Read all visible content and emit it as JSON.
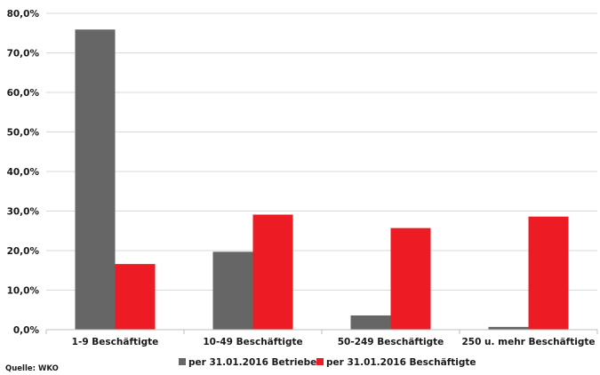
{
  "chart_data": {
    "type": "bar",
    "categories": [
      "1-9 Beschäftigte",
      "10-49 Beschäftigte",
      "50-249 Beschäftigte",
      "250 u. mehr Beschäftigte"
    ],
    "series": [
      {
        "name": "per 31.01.2016 Betriebe",
        "color": "#666666",
        "values": [
          75.9,
          19.7,
          3.6,
          0.7
        ]
      },
      {
        "name": "per 31.01.2016 Beschäftigte",
        "color": "#ed1c24",
        "values": [
          16.6,
          29.1,
          25.7,
          28.6
        ]
      }
    ],
    "ylim": [
      0,
      80
    ],
    "yticks": [
      0,
      10,
      20,
      30,
      40,
      50,
      60,
      70,
      80
    ],
    "ytick_labels": [
      "0,0%",
      "10,0%",
      "20,0%",
      "30,0%",
      "40,0%",
      "50,0%",
      "60,0%",
      "70,0%",
      "80,0%"
    ],
    "grid": true,
    "legend_position": "bottom",
    "title": "",
    "xlabel": "",
    "ylabel": ""
  },
  "source": "Quelle: WKO"
}
